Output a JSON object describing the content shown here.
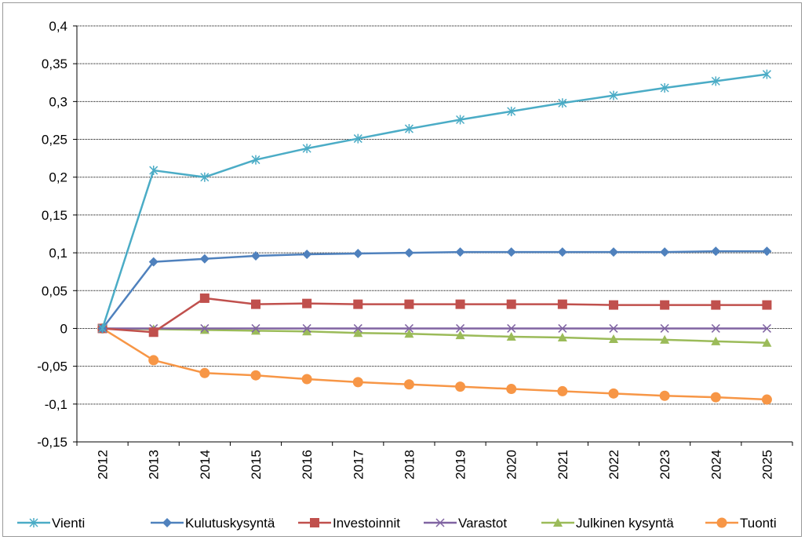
{
  "chart_data": {
    "type": "line",
    "title": "",
    "xlabel": "",
    "ylabel": "",
    "categories": [
      "2012",
      "2013",
      "2014",
      "2015",
      "2016",
      "2017",
      "2018",
      "2019",
      "2020",
      "2021",
      "2022",
      "2023",
      "2024",
      "2025"
    ],
    "ylim": [
      -0.15,
      0.4
    ],
    "ytick_step": 0.05,
    "ytick_labels": [
      "-0,15",
      "-0,1",
      "-0,05",
      "0",
      "0,05",
      "0,1",
      "0,15",
      "0,2",
      "0,25",
      "0,3",
      "0,35",
      "0,4"
    ],
    "grid": true,
    "legend_position": "bottom",
    "series": [
      {
        "name": "Vienti",
        "color": "#4BACC6",
        "marker": "asterisk",
        "values": [
          0,
          0.209,
          0.2,
          0.223,
          0.238,
          0.251,
          0.264,
          0.276,
          0.287,
          0.298,
          0.308,
          0.318,
          0.327,
          0.336
        ]
      },
      {
        "name": "Kulutuskysyntä",
        "color": "#4F81BD",
        "marker": "diamond",
        "values": [
          0,
          0.088,
          0.092,
          0.096,
          0.098,
          0.099,
          0.1,
          0.101,
          0.101,
          0.101,
          0.101,
          0.101,
          0.102,
          0.102
        ]
      },
      {
        "name": "Investoinnit",
        "color": "#C0504D",
        "marker": "square",
        "values": [
          0,
          -0.005,
          0.04,
          0.032,
          0.033,
          0.032,
          0.032,
          0.032,
          0.032,
          0.032,
          0.031,
          0.031,
          0.031,
          0.031
        ]
      },
      {
        "name": "Varastot",
        "color": "#8064A2",
        "marker": "x",
        "values": [
          0,
          0,
          0,
          0,
          0,
          0,
          0,
          0,
          0,
          0,
          0,
          0,
          0,
          0
        ]
      },
      {
        "name": "Julkinen kysyntä",
        "color": "#9BBB59",
        "marker": "triangle",
        "values": [
          0,
          -0.001,
          -0.002,
          -0.003,
          -0.004,
          -0.006,
          -0.007,
          -0.009,
          -0.011,
          -0.012,
          -0.014,
          -0.015,
          -0.017,
          -0.019
        ]
      },
      {
        "name": "Tuonti",
        "color": "#F79646",
        "marker": "circle",
        "values": [
          0,
          -0.042,
          -0.059,
          -0.062,
          -0.067,
          -0.071,
          -0.074,
          -0.077,
          -0.08,
          -0.083,
          -0.086,
          -0.089,
          -0.091,
          -0.094
        ]
      }
    ]
  }
}
